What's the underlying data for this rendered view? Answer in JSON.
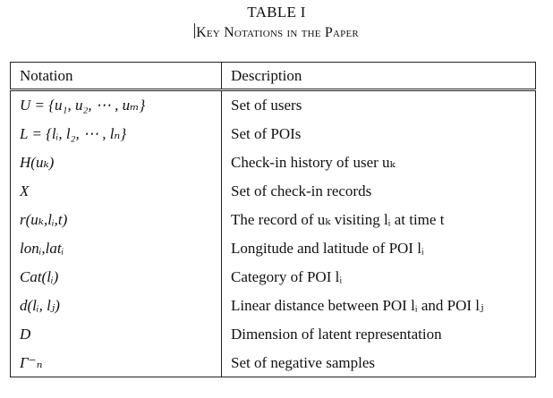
{
  "caption": {
    "label": "TABLE I",
    "title": "Key Notations in the Paper"
  },
  "table": {
    "headers": [
      "Notation",
      "Description"
    ],
    "rows": [
      {
        "notation": "U = {u₁, u₂, ⋯ , uₘ}",
        "description": "Set of users"
      },
      {
        "notation": "L = {lᵢ, l₂, ⋯ , lₙ}",
        "description": "Set of POIs"
      },
      {
        "notation": "H(uₖ)",
        "description": "Check-in history of user uₖ"
      },
      {
        "notation": "X",
        "description": "Set of check-in records"
      },
      {
        "notation": "r(uₖ,lᵢ,t)",
        "description": "The record of uₖ visiting lᵢ at time t"
      },
      {
        "notation": "lonᵢ,latᵢ",
        "description": "Longitude and latitude of POI lᵢ"
      },
      {
        "notation": "Cat(lᵢ)",
        "description": "Category of POI lᵢ"
      },
      {
        "notation": "d(lᵢ, lⱼ)",
        "description": "Linear distance between POI lᵢ and POI lⱼ"
      },
      {
        "notation": "D",
        "description": "Dimension of latent representation"
      },
      {
        "notation": "Γ⁻ₙ",
        "description": "Set of negative samples"
      }
    ]
  }
}
